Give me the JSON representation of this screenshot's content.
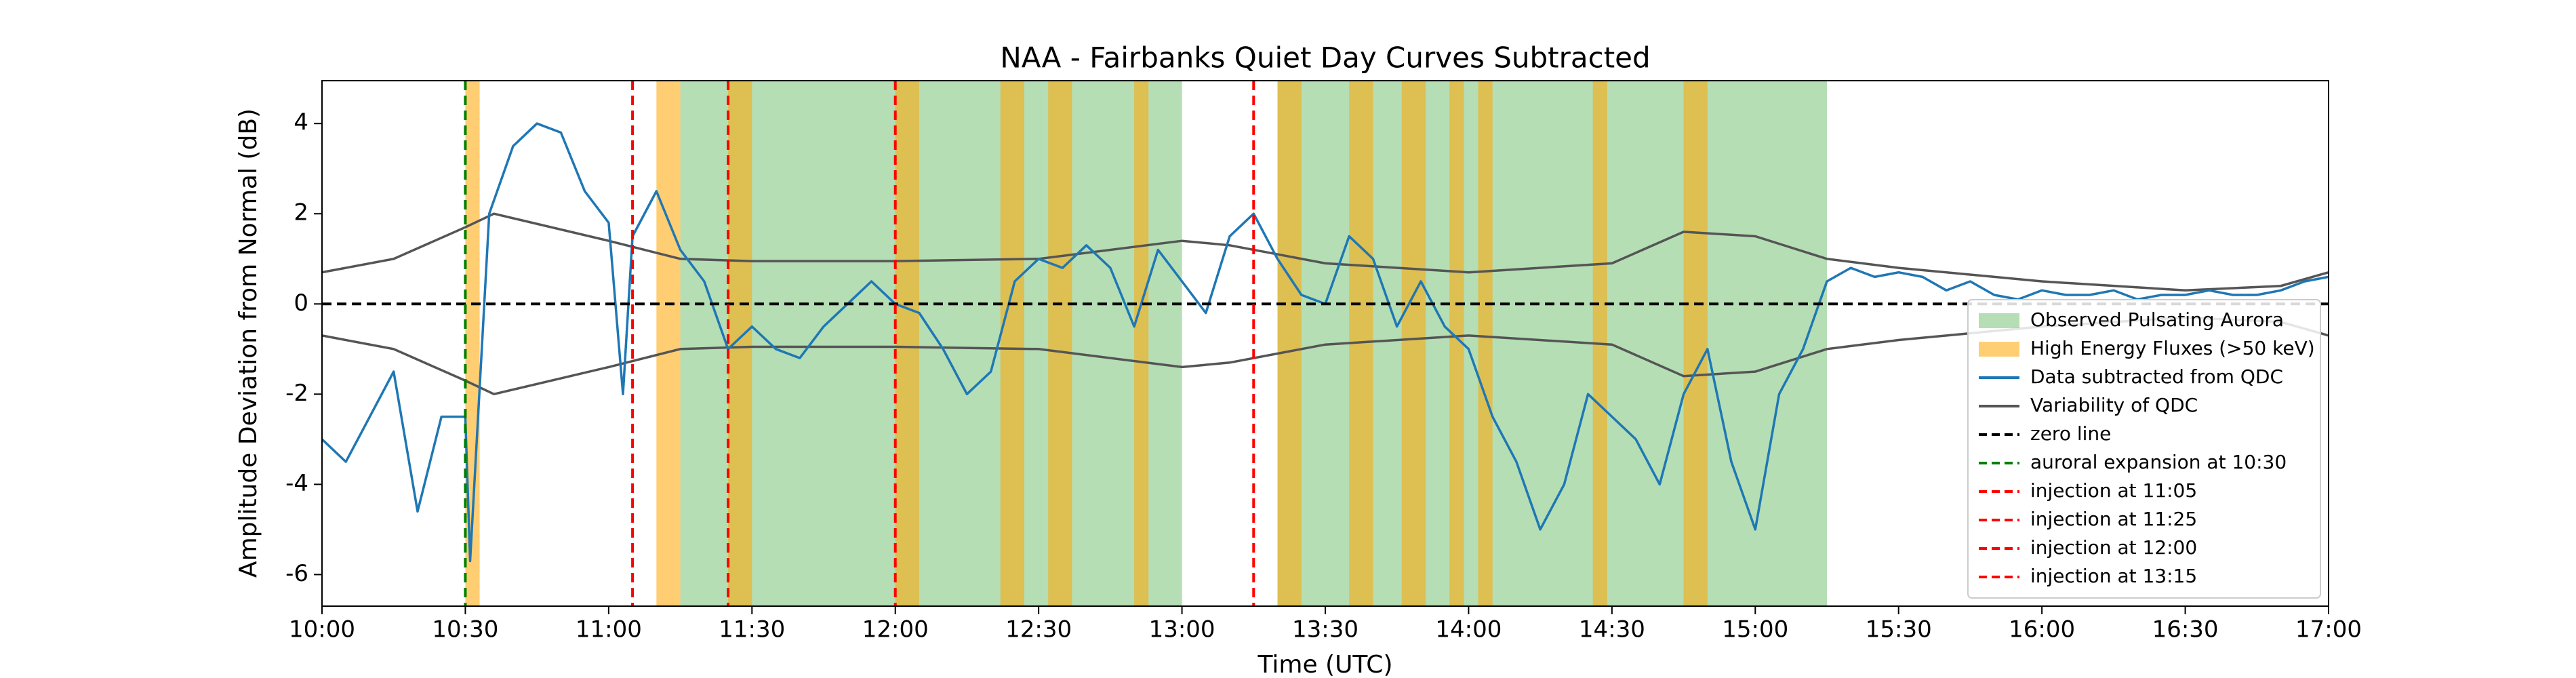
{
  "chart_data": {
    "type": "line",
    "title": "NAA - Fairbanks Quiet Day Curves Subtracted",
    "xlabel": "Time (UTC)",
    "ylabel": "Amplitude Deviation from Normal (dB)",
    "xlim": [
      "10:00",
      "17:00"
    ],
    "xticks": [
      "10:00",
      "10:30",
      "11:00",
      "11:30",
      "12:00",
      "12:30",
      "13:00",
      "13:30",
      "14:00",
      "14:30",
      "15:00",
      "15:30",
      "16:00",
      "16:30",
      "17:00"
    ],
    "ylim": [
      -6.7,
      4.95
    ],
    "yticks": [
      -6,
      -4,
      -2,
      0,
      2,
      4
    ],
    "legend": "lower right",
    "spans": [
      {
        "name": "Observed Pulsating Aurora",
        "color": "#2ca02c",
        "ranges": [
          [
            "11:15",
            "13:00"
          ],
          [
            "13:20",
            "15:15"
          ]
        ]
      },
      {
        "name": "High Energy Fluxes (>50 keV)",
        "color": "#ffa500",
        "ranges": [
          [
            "10:30",
            "10:33"
          ],
          [
            "11:10",
            "11:15"
          ],
          [
            "11:25",
            "11:30"
          ],
          [
            "12:00",
            "12:05"
          ],
          [
            "12:22",
            "12:27"
          ],
          [
            "12:32",
            "12:37"
          ],
          [
            "12:50",
            "12:53"
          ],
          [
            "13:20",
            "13:25"
          ],
          [
            "13:35",
            "13:40"
          ],
          [
            "13:46",
            "13:51"
          ],
          [
            "13:56",
            "13:59"
          ],
          [
            "14:02",
            "14:05"
          ],
          [
            "14:26",
            "14:29"
          ],
          [
            "14:45",
            "14:50"
          ]
        ]
      }
    ],
    "series": [
      {
        "name": "Data subtracted from QDC",
        "color": "#1f77b4",
        "x": [
          "10:00",
          "10:05",
          "10:10",
          "10:15",
          "10:20",
          "10:25",
          "10:30",
          "10:31",
          "10:35",
          "10:40",
          "10:45",
          "10:50",
          "10:55",
          "11:00",
          "11:03",
          "11:05",
          "11:10",
          "11:15",
          "11:20",
          "11:25",
          "11:30",
          "11:35",
          "11:40",
          "11:45",
          "11:50",
          "11:55",
          "12:00",
          "12:05",
          "12:10",
          "12:15",
          "12:20",
          "12:25",
          "12:30",
          "12:35",
          "12:40",
          "12:45",
          "12:50",
          "12:55",
          "13:00",
          "13:05",
          "13:10",
          "13:15",
          "13:20",
          "13:25",
          "13:30",
          "13:35",
          "13:40",
          "13:45",
          "13:50",
          "13:55",
          "14:00",
          "14:05",
          "14:10",
          "14:15",
          "14:20",
          "14:25",
          "14:30",
          "14:35",
          "14:40",
          "14:45",
          "14:50",
          "14:55",
          "15:00",
          "15:05",
          "15:10",
          "15:15",
          "15:20",
          "15:25",
          "15:30",
          "15:35",
          "15:40",
          "15:45",
          "15:50",
          "15:55",
          "16:00",
          "16:05",
          "16:10",
          "16:15",
          "16:20",
          "16:25",
          "16:30",
          "16:35",
          "16:40",
          "16:45",
          "16:50",
          "16:55",
          "17:00"
        ],
        "values": [
          -3.0,
          -3.5,
          -2.5,
          -1.5,
          -4.6,
          -2.5,
          -2.5,
          -5.7,
          2.0,
          3.5,
          4.0,
          3.8,
          2.5,
          1.8,
          -2.0,
          1.5,
          2.5,
          1.2,
          0.5,
          -1.0,
          -0.5,
          -1.0,
          -1.2,
          -0.5,
          0,
          0.5,
          0,
          -0.2,
          -1.0,
          -2.0,
          -1.5,
          0.5,
          1.0,
          0.8,
          1.3,
          0.8,
          -0.5,
          1.2,
          0.5,
          -0.2,
          1.5,
          2.0,
          1.0,
          0.2,
          0,
          1.5,
          1.0,
          -0.5,
          0.5,
          -0.5,
          -1.0,
          -2.5,
          -3.5,
          -5.0,
          -4.0,
          -2.0,
          -2.5,
          -3.0,
          -4.0,
          -2.0,
          -1.0,
          -3.5,
          -5.0,
          -2.0,
          -1.0,
          0.5,
          0.8,
          0.6,
          0.7,
          0.6,
          0.3,
          0.5,
          0.2,
          0.1,
          0.3,
          0.2,
          0.2,
          0.3,
          0.1,
          0.2,
          0.2,
          0.3,
          0.2,
          0.2,
          0.3,
          0.5,
          0.6
        ]
      }
    ],
    "variability": {
      "name": "Variability of QDC",
      "color": "#555555",
      "x": [
        "10:00",
        "10:15",
        "10:30",
        "10:36",
        "11:00",
        "11:15",
        "11:30",
        "12:00",
        "12:30",
        "13:00",
        "13:10",
        "13:30",
        "14:00",
        "14:30",
        "14:45",
        "15:00",
        "15:15",
        "15:30",
        "16:00",
        "16:30",
        "16:50",
        "17:00"
      ],
      "upper": [
        0.7,
        1.0,
        1.7,
        2.0,
        1.4,
        1.0,
        0.95,
        0.95,
        1.0,
        1.4,
        1.3,
        0.9,
        0.7,
        0.9,
        1.6,
        1.5,
        1.0,
        0.8,
        0.5,
        0.3,
        0.4,
        0.7
      ],
      "lower": [
        -0.7,
        -1.0,
        -1.7,
        -2.0,
        -1.4,
        -1.0,
        -0.95,
        -0.95,
        -1.0,
        -1.4,
        -1.3,
        -0.9,
        -0.7,
        -0.9,
        -1.6,
        -1.5,
        -1.0,
        -0.8,
        -0.5,
        -0.3,
        -0.4,
        -0.7
      ]
    },
    "hline": {
      "name": "zero line",
      "color": "#000000",
      "value": 0
    },
    "vlines": [
      {
        "name": "auroral expansion at 10:30",
        "color": "#008000",
        "x": "10:30"
      },
      {
        "name": "injection at 11:05",
        "color": "#ff0000",
        "x": "11:05"
      },
      {
        "name": "injection at 11:25",
        "color": "#ff0000",
        "x": "11:25"
      },
      {
        "name": "injection at 12:00",
        "color": "#ff0000",
        "x": "12:00"
      },
      {
        "name": "injection at 13:15",
        "color": "#ff0000",
        "x": "13:15"
      }
    ]
  }
}
